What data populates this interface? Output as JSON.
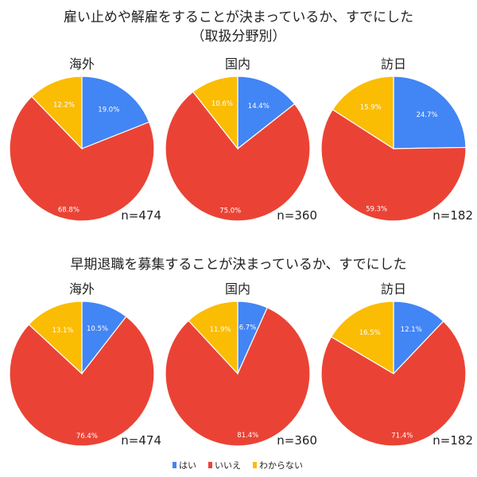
{
  "chart_data": [
    {
      "type": "pie",
      "title": "雇い止めや解雇をすることが決まっているか、すでにした",
      "subtitle": "（取扱分野別）",
      "categories": [
        "はい",
        "いいえ",
        "わからない"
      ],
      "colors": [
        "#4285f4",
        "#ea4335",
        "#fbbc04"
      ],
      "charts": [
        {
          "label": "海外",
          "n_label": "n=474",
          "values": [
            19.0,
            68.8,
            12.2
          ],
          "value_labels": [
            "19.0%",
            "68.8%",
            "12.2%"
          ]
        },
        {
          "label": "国内",
          "n_label": "n=360",
          "values": [
            14.4,
            75.0,
            10.6
          ],
          "value_labels": [
            "14.4%",
            "75.0%",
            "10.6%"
          ]
        },
        {
          "label": "訪日",
          "n_label": "n=182",
          "values": [
            24.7,
            59.3,
            15.9
          ],
          "value_labels": [
            "24.7%",
            "59.3%",
            "15.9%"
          ]
        }
      ]
    },
    {
      "type": "pie",
      "title": "早期退職を募集することが決まっているか、すでにした",
      "categories": [
        "はい",
        "いいえ",
        "わからない"
      ],
      "colors": [
        "#4285f4",
        "#ea4335",
        "#fbbc04"
      ],
      "charts": [
        {
          "label": "海外",
          "n_label": "n=474",
          "values": [
            10.5,
            76.4,
            13.1
          ],
          "value_labels": [
            "10.5%",
            "76.4%",
            "13.1%"
          ]
        },
        {
          "label": "国内",
          "n_label": "n=360",
          "values": [
            6.7,
            81.4,
            11.9
          ],
          "value_labels": [
            "6.7%",
            "81.4%",
            "11.9%"
          ]
        },
        {
          "label": "訪日",
          "n_label": "n=182",
          "values": [
            12.1,
            71.4,
            16.5
          ],
          "value_labels": [
            "12.1%",
            "71.4%",
            "16.5%"
          ]
        }
      ]
    }
  ],
  "legend": {
    "position": "bottom",
    "items": [
      {
        "label": "はい",
        "color": "#4285f4"
      },
      {
        "label": "いいえ",
        "color": "#ea4335"
      },
      {
        "label": "わからない",
        "color": "#fbbc04"
      }
    ]
  }
}
